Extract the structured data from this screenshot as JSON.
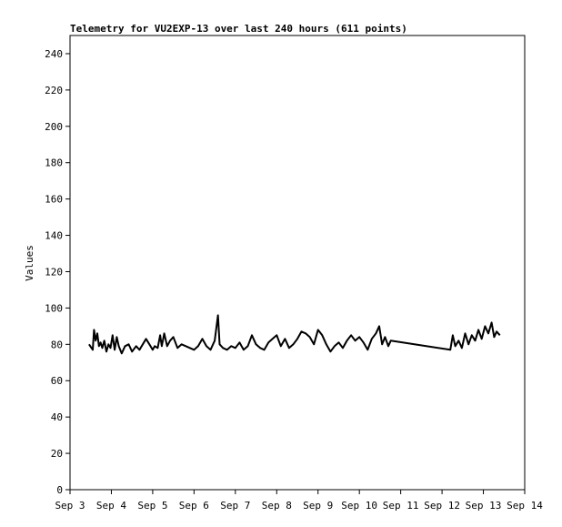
{
  "chart_data": {
    "type": "line",
    "title": "Telemetry for VU2EXP-13 over last 240 hours (611 points)",
    "xlabel": "",
    "ylabel": "Values",
    "ylim": [
      0,
      250
    ],
    "yticks": [
      0,
      20,
      40,
      60,
      80,
      100,
      120,
      140,
      160,
      180,
      200,
      220,
      240
    ],
    "xlim": [
      "Sep 3",
      "Sep 14"
    ],
    "xticks": [
      "Sep 3",
      "Sep 4",
      "Sep 5",
      "Sep 6",
      "Sep 7",
      "Sep 8",
      "Sep 9",
      "Sep 10",
      "Sep 11",
      "Sep 12",
      "Sep 13",
      "Sep 14"
    ],
    "grid": false,
    "line_color": "#000000",
    "series": [
      {
        "x": [
          3.46,
          3.52,
          3.55,
          3.58,
          3.62,
          3.66,
          3.7,
          3.74,
          3.78,
          3.83,
          3.88,
          3.93,
          3.98,
          4.03,
          4.08,
          4.13,
          4.18,
          4.25,
          4.33,
          4.42,
          4.5,
          4.6,
          4.68,
          4.76,
          4.84,
          4.92,
          5.0,
          5.05,
          5.12,
          5.18,
          5.22,
          5.28,
          5.35,
          5.42,
          5.5,
          5.6,
          5.7,
          5.8,
          5.9,
          6.0,
          6.1,
          6.2,
          6.3,
          6.4,
          6.5,
          6.58,
          6.62,
          6.7,
          6.8,
          6.9,
          7.0,
          7.1,
          7.2,
          7.3,
          7.4,
          7.5,
          7.6,
          7.7,
          7.8,
          7.9,
          8.0,
          8.1,
          8.2,
          8.3,
          8.4,
          8.5,
          8.6,
          8.7,
          8.8,
          8.9,
          9.0,
          9.1,
          9.2,
          9.3,
          9.4,
          9.5,
          9.6,
          9.7,
          9.8,
          9.9,
          10.0,
          10.1,
          10.2,
          10.3,
          10.4,
          10.48,
          10.55,
          10.62,
          10.7,
          10.76,
          12.2,
          12.26,
          12.32,
          12.4,
          12.48,
          12.56,
          12.64,
          12.72,
          12.8,
          12.88,
          12.96,
          13.04,
          13.12,
          13.2,
          13.26,
          13.32,
          13.4
        ],
        "y": [
          80,
          78,
          77,
          88,
          82,
          86,
          79,
          81,
          78,
          82,
          76,
          80,
          78,
          85,
          77,
          84,
          79,
          75,
          79,
          80,
          76,
          79,
          77,
          80,
          83,
          80,
          77,
          79,
          78,
          85,
          79,
          86,
          79,
          82,
          84,
          78,
          80,
          79,
          78,
          77,
          79,
          83,
          79,
          77,
          82,
          96,
          80,
          78,
          77,
          79,
          78,
          81,
          77,
          79,
          85,
          80,
          78,
          77,
          81,
          83,
          85,
          79,
          83,
          78,
          80,
          83,
          87,
          86,
          84,
          80,
          88,
          85,
          80,
          76,
          79,
          81,
          78,
          82,
          85,
          82,
          84,
          81,
          77,
          83,
          86,
          90,
          80,
          84,
          79,
          82,
          77,
          85,
          79,
          82,
          78,
          86,
          80,
          85,
          82,
          88,
          83,
          90,
          86,
          92,
          84,
          87,
          85
        ]
      }
    ]
  }
}
